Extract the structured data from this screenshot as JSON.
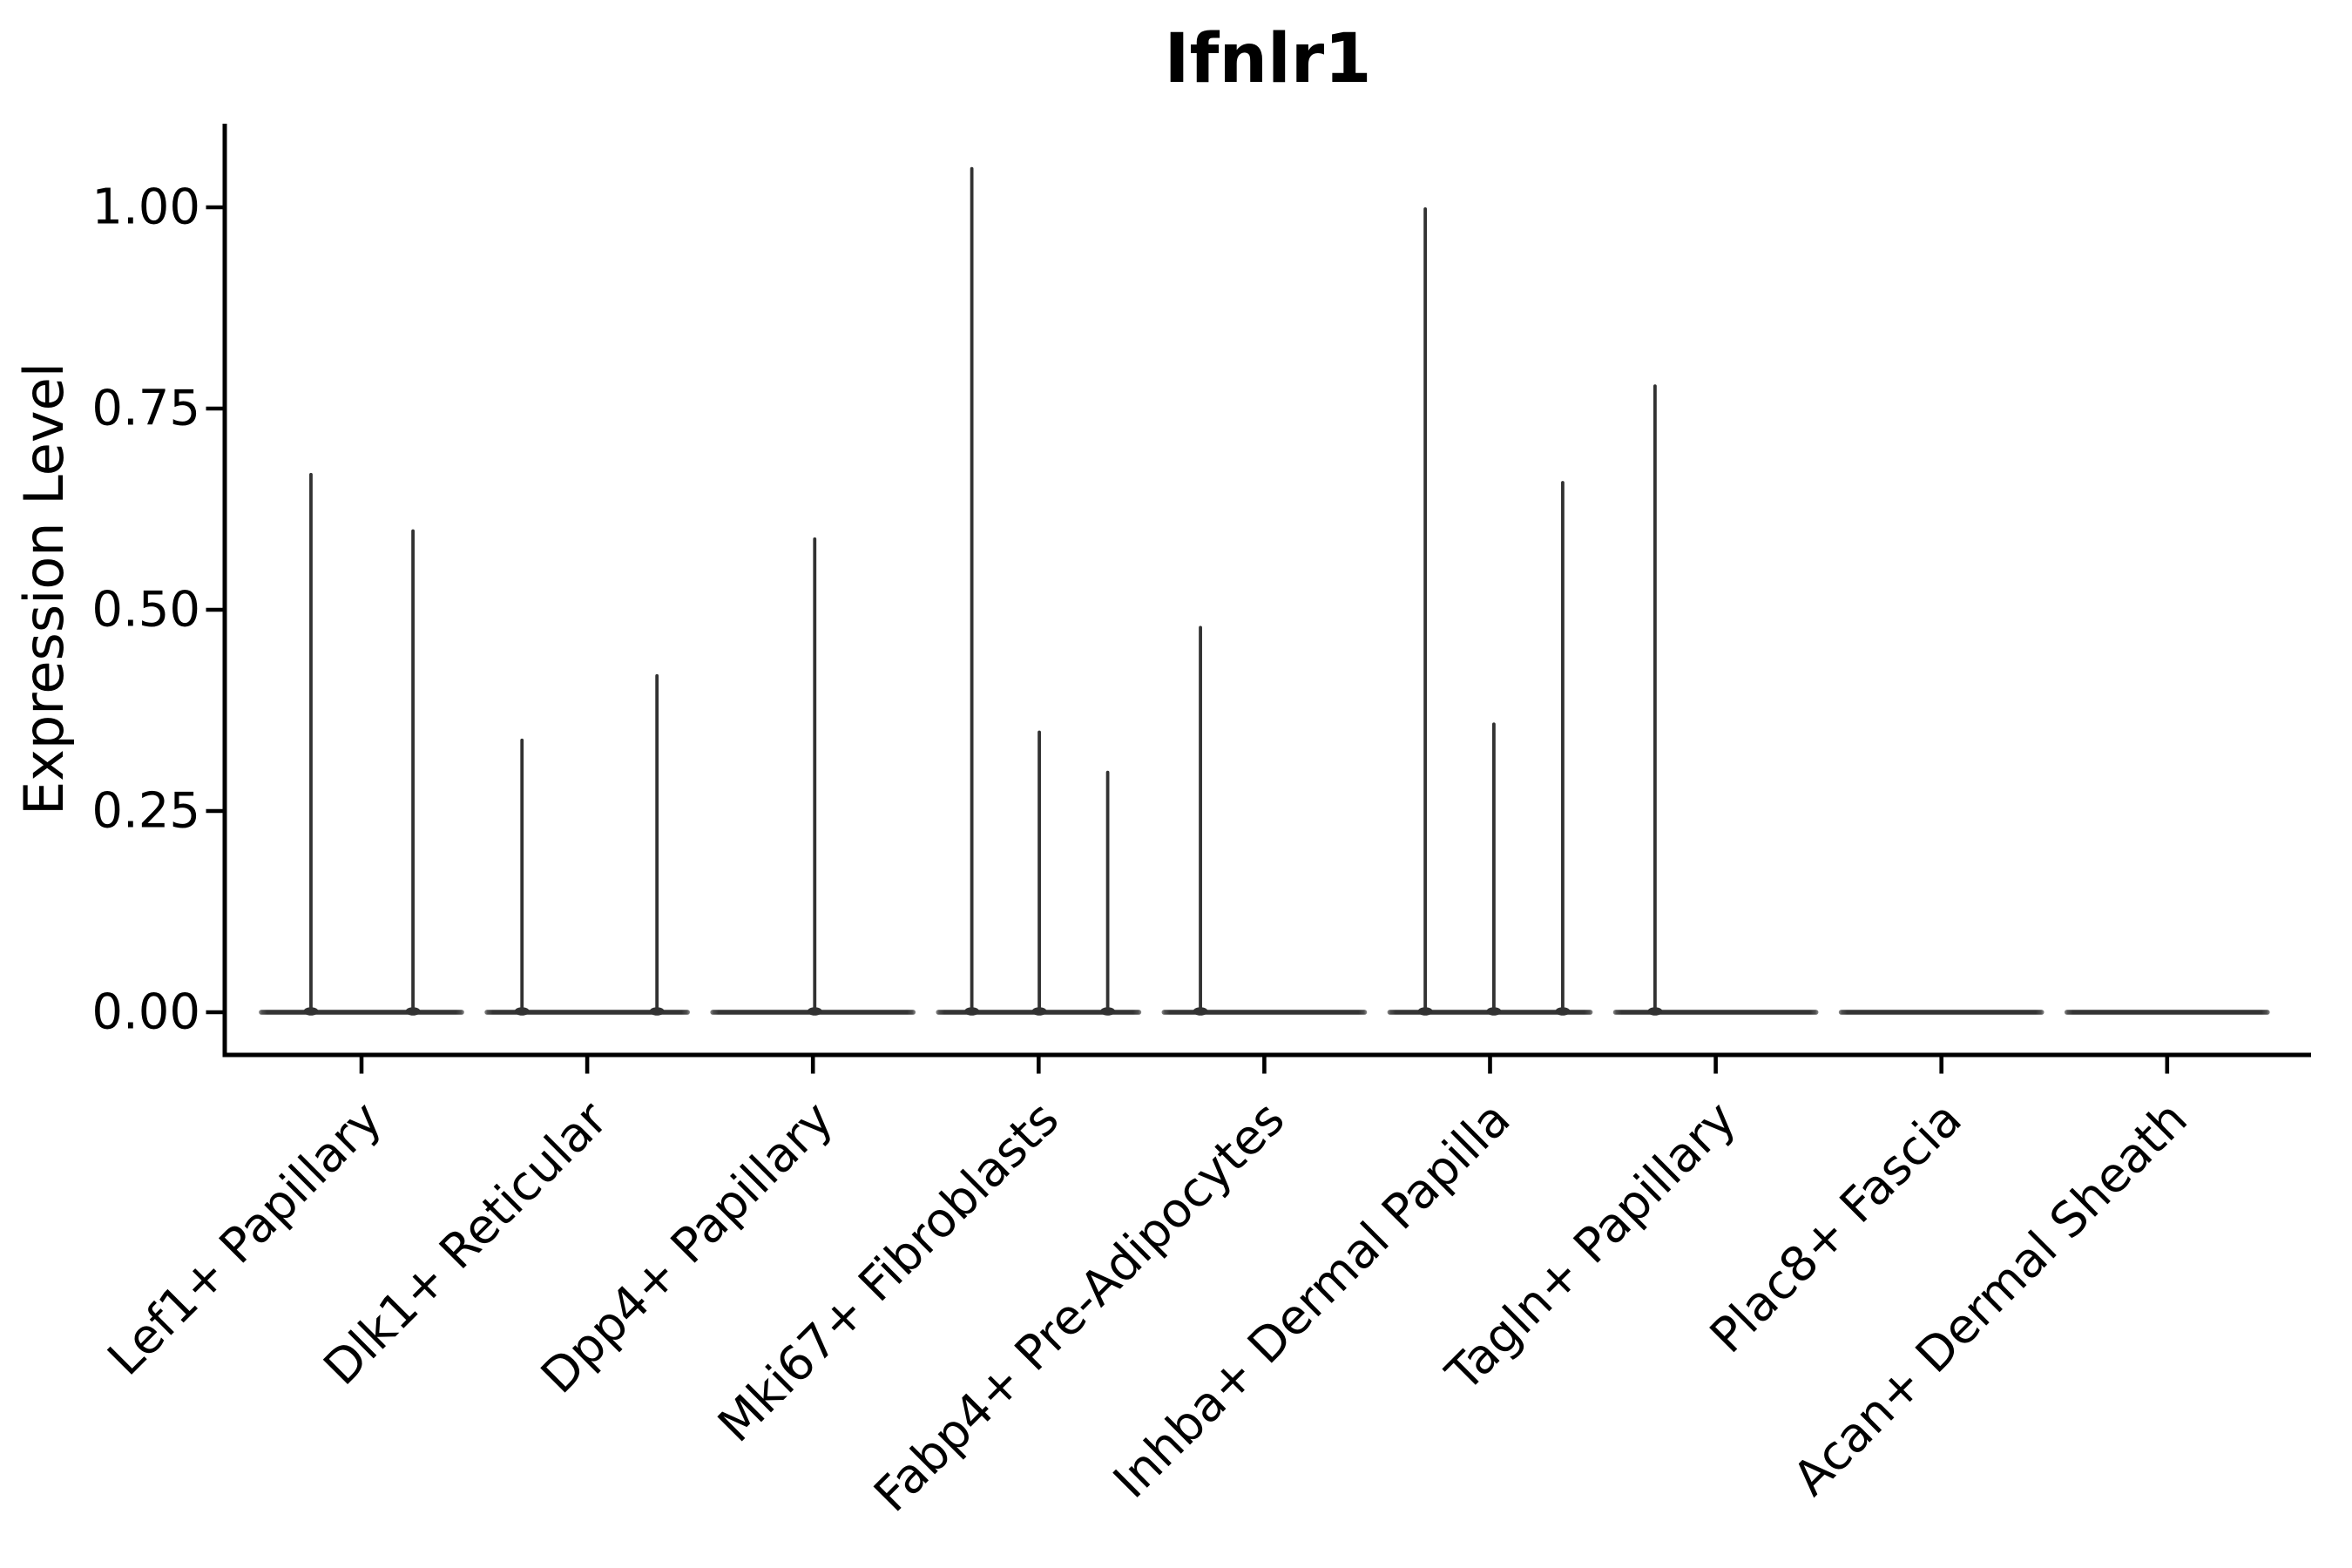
{
  "colors": {
    "background": "#ffffff",
    "axis": "#000000",
    "text": "#000000",
    "violin": "#323232"
  },
  "chart_data": {
    "type": "violin",
    "title": "Ifnlr1",
    "xlabel": "",
    "ylabel": "Expression Level",
    "ylim": [
      0,
      1.1
    ],
    "grid": false,
    "legend": "none",
    "yticks": [
      0.0,
      0.25,
      0.5,
      0.75,
      1.0
    ],
    "ytick_labels": [
      "0.00",
      "0.25",
      "0.50",
      "0.75",
      "1.00"
    ],
    "categories": [
      "Lef1+ Papillary",
      "Dlk1+ Reticular",
      "Dpp4+ Papillary",
      "Mki67+ Fibroblasts",
      "Fabp4+ Pre-Adipocytes",
      "Inhba+ Dermal Papilla",
      "Tagln+ Papillary",
      "Plac8+ Fascia",
      "Acan+ Dermal Sheath"
    ],
    "series": [
      {
        "category": "Lef1+ Papillary",
        "spikes": [
          {
            "pos": -0.224,
            "max": 0.67
          },
          {
            "pos": 0.228,
            "max": 0.6
          }
        ]
      },
      {
        "category": "Dlk1+ Reticular",
        "spikes": [
          {
            "pos": -0.289,
            "max": 0.34
          },
          {
            "pos": 0.309,
            "max": 0.42
          }
        ]
      },
      {
        "category": "Dpp4+ Papillary",
        "spikes": [
          {
            "pos": 0.008,
            "max": 0.59
          }
        ]
      },
      {
        "category": "Mki67+ Fibroblasts",
        "spikes": [
          {
            "pos": -0.296,
            "max": 1.05
          },
          {
            "pos": 0.003,
            "max": 0.35
          },
          {
            "pos": 0.306,
            "max": 0.3
          }
        ]
      },
      {
        "category": "Fabp4+ Pre-Adipocytes",
        "spikes": [
          {
            "pos": -0.283,
            "max": 0.48
          }
        ]
      },
      {
        "category": "Inhba+ Dermal Papilla",
        "spikes": [
          {
            "pos": -0.287,
            "max": 1.0
          },
          {
            "pos": 0.017,
            "max": 0.36
          },
          {
            "pos": 0.322,
            "max": 0.66
          }
        ]
      },
      {
        "category": "Tagln+ Papillary",
        "spikes": [
          {
            "pos": -0.269,
            "max": 0.78
          }
        ]
      },
      {
        "category": "Plac8+ Fascia",
        "spikes": []
      },
      {
        "category": "Acan+ Dermal Sheath",
        "spikes": []
      }
    ],
    "violin_base_width_frac": 0.91
  }
}
